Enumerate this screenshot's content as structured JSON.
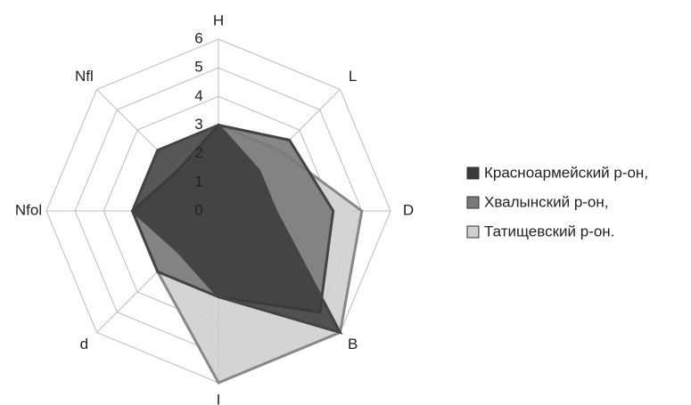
{
  "chart_data": {
    "type": "radar",
    "categories": [
      "H",
      "L",
      "D",
      "B",
      "I",
      "d",
      "Nfol",
      "Nfl"
    ],
    "rlim": [
      0,
      6
    ],
    "rticks": [
      0,
      1,
      2,
      3,
      4,
      5,
      6
    ],
    "series": [
      {
        "name": "Красноармейский р-он,",
        "color": "#3a3a3a",
        "values": [
          3,
          2,
          2,
          6,
          3,
          2,
          3,
          3
        ]
      },
      {
        "name": "Хвалынский р-он,",
        "color": "#7a7a7a",
        "values": [
          3,
          3.5,
          4,
          5,
          3,
          3,
          3,
          2
        ]
      },
      {
        "name": "Татищевский р-он.",
        "color": "#cfcfcf",
        "values": [
          3,
          3,
          5,
          6,
          6,
          3,
          3,
          2
        ]
      }
    ],
    "legend": "right"
  }
}
